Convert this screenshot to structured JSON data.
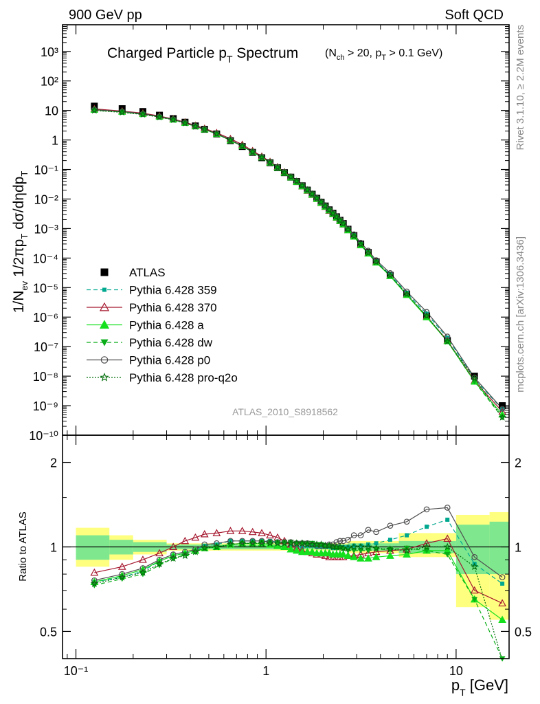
{
  "header": {
    "left": "900 GeV pp",
    "right": "Soft QCD"
  },
  "side_labels": {
    "right_top": "Rivet 3.1.10, ≥ 2.2M events",
    "right_bottom": "mcplots.cern.ch [arXiv:1306.3436]"
  },
  "chart_data": [
    {
      "type": "scatter",
      "title_main": "Charged Particle p",
      "title_main_sub": "T",
      "title_main_tail": " Spectrum",
      "title_cut_1": "(N",
      "title_cut_1_sub": "ch",
      "title_cut_2": " > 20, p",
      "title_cut_2_sub": "T",
      "title_cut_3": " > 0.1 GeV)",
      "ylabel": "1/N_ev 1/2πp_T dσ/dηdp_T",
      "xlabel": "",
      "xscale": "log",
      "yscale": "log",
      "xlim": [
        0.085,
        19
      ],
      "ylim": [
        1e-10,
        8000
      ],
      "grid": false,
      "legend_position": "lower-left",
      "watermark": "ATLAS_2010_S8918562",
      "ytick_labels": [
        "10⁻¹⁰",
        "10⁻⁹",
        "10⁻⁸",
        "10⁻⁷",
        "10⁻⁶",
        "10⁻⁵",
        "10⁻⁴",
        "10⁻³",
        "10⁻²",
        "10⁻¹",
        "1",
        "10",
        "10²",
        "10³"
      ],
      "x": [
        0.125,
        0.175,
        0.225,
        0.275,
        0.325,
        0.375,
        0.425,
        0.475,
        0.55,
        0.65,
        0.75,
        0.85,
        0.95,
        1.05,
        1.15,
        1.25,
        1.35,
        1.45,
        1.55,
        1.65,
        1.75,
        1.85,
        1.95,
        2.05,
        2.15,
        2.25,
        2.35,
        2.45,
        2.55,
        2.7,
        2.9,
        3.15,
        3.45,
        3.8,
        4.5,
        5.5,
        7.0,
        9.0,
        12.5,
        17.5
      ],
      "series": [
        {
          "name": "ATLAS",
          "color": "#000000",
          "marker": "square",
          "values": [
            14,
            11.5,
            9.2,
            6.9,
            5.3,
            4.0,
            3.0,
            2.3,
            1.6,
            0.95,
            0.6,
            0.38,
            0.25,
            0.17,
            0.115,
            0.078,
            0.055,
            0.039,
            0.028,
            0.02,
            0.0145,
            0.0106,
            0.0078,
            0.0058,
            0.0043,
            0.0033,
            0.0025,
            0.0019,
            0.00148,
            0.00095,
            0.00058,
            0.0003,
            0.000155,
            7.5e-05,
            2.6e-05,
            6e-06,
            1.1e-06,
            1.6e-07,
            1e-08,
            1e-09
          ]
        },
        {
          "name": "Pythia 6.428 359",
          "color": "#00a88f",
          "marker": "square-small",
          "dash": "6,4",
          "values": [
            10.5,
            8.9,
            7.5,
            6.1,
            4.9,
            3.8,
            2.9,
            2.3,
            1.6,
            0.99,
            0.63,
            0.4,
            0.265,
            0.178,
            0.12,
            0.081,
            0.056,
            0.039,
            0.028,
            0.0202,
            0.0147,
            0.0106,
            0.0078,
            0.0058,
            0.0043,
            0.00328,
            0.0025,
            0.00191,
            0.00148,
            0.00095,
            0.00059,
            0.000302,
            0.000158,
            7.7e-05,
            2.75e-05,
            6.6e-06,
            1.3e-06,
            2e-07,
            8e-09,
            7.5e-10
          ]
        },
        {
          "name": "Pythia 6.428 370",
          "color": "#a5172e",
          "marker": "triangle-open",
          "dash": "",
          "values": [
            11.3,
            9.5,
            8.1,
            6.5,
            5.1,
            4.0,
            3.1,
            2.45,
            1.75,
            1.1,
            0.7,
            0.43,
            0.28,
            0.185,
            0.123,
            0.082,
            0.055,
            0.038,
            0.0268,
            0.0191,
            0.0138,
            0.01,
            0.0073,
            0.0054,
            0.004,
            0.00305,
            0.00232,
            0.00178,
            0.00137,
            0.00088,
            0.00054,
            0.00028,
            0.000148,
            7.3e-05,
            2.5e-05,
            5.7e-06,
            1.05e-06,
            1.6e-07,
            7e-09,
            6.3e-10
          ]
        },
        {
          "name": "Pythia 6.428 a",
          "color": "#14e01e",
          "marker": "triangle",
          "dash": "",
          "values": [
            10.5,
            9.0,
            7.6,
            6.1,
            4.9,
            3.8,
            2.9,
            2.27,
            1.6,
            0.97,
            0.62,
            0.39,
            0.257,
            0.172,
            0.116,
            0.078,
            0.054,
            0.038,
            0.027,
            0.0194,
            0.014,
            0.0101,
            0.0074,
            0.0055,
            0.0041,
            0.0031,
            0.00235,
            0.0018,
            0.00138,
            0.00087,
            0.00053,
            0.00027,
            0.000142,
            7e-05,
            2.45e-05,
            5.6e-06,
            9.8e-07,
            1.52e-07,
            6.5e-09,
            5e-10
          ]
        },
        {
          "name": "Pythia 6.428 dw",
          "color": "#08ad17",
          "marker": "triangle-down",
          "dash": "6,4",
          "values": [
            10.2,
            8.8,
            7.4,
            6.0,
            4.85,
            3.75,
            2.9,
            2.3,
            1.6,
            0.97,
            0.62,
            0.39,
            0.26,
            0.176,
            0.119,
            0.081,
            0.057,
            0.04,
            0.0288,
            0.0206,
            0.0149,
            0.0107,
            0.0079,
            0.0058,
            0.0043,
            0.00327,
            0.00247,
            0.00188,
            0.00145,
            0.00092,
            0.00056,
            0.00029,
            0.00015,
            7.3e-05,
            2.5e-05,
            5.9e-06,
            1.07e-06,
            1.5e-07,
            6.5e-09,
            4e-10
          ]
        },
        {
          "name": "Pythia 6.428 p0",
          "color": "#4d4d4d",
          "marker": "circle-open",
          "dash": "",
          "values": [
            10.6,
            9.2,
            7.7,
            6.2,
            5.0,
            3.85,
            2.95,
            2.34,
            1.65,
            1.0,
            0.63,
            0.4,
            0.262,
            0.176,
            0.119,
            0.081,
            0.057,
            0.0401,
            0.0288,
            0.0206,
            0.0148,
            0.0107,
            0.0079,
            0.0059,
            0.0044,
            0.00336,
            0.0026,
            0.00199,
            0.00156,
            0.00101,
            0.00064,
            0.00033,
            0.000178,
            8.5e-05,
            3.1e-05,
            7.4e-06,
            1.5e-06,
            2.2e-07,
            9e-09,
            7.8e-10
          ]
        },
        {
          "name": "Pythia 6.428 pro-q2o",
          "color": "#006d0a",
          "marker": "star",
          "dash": "2,2",
          "values": [
            10.0,
            8.6,
            7.3,
            5.9,
            4.8,
            3.7,
            2.85,
            2.27,
            1.6,
            0.97,
            0.62,
            0.39,
            0.258,
            0.174,
            0.118,
            0.08,
            0.056,
            0.04,
            0.0285,
            0.0204,
            0.0148,
            0.0107,
            0.0079,
            0.0058,
            0.0043,
            0.00326,
            0.00246,
            0.00187,
            0.00144,
            0.00092,
            0.00055,
            0.00029,
            0.000149,
            7.3e-05,
            2.6e-05,
            6e-06,
            1.1e-06,
            1.5e-07,
            8.5e-09,
            4e-10
          ]
        }
      ]
    },
    {
      "type": "line",
      "title": "",
      "xlabel": "p_T [GeV]",
      "ylabel": "Ratio to ATLAS",
      "xscale": "log",
      "yscale": "log",
      "xlim": [
        0.085,
        19
      ],
      "ylim": [
        0.4,
        2.5
      ],
      "grid": false,
      "reference_line": 1,
      "xtick_labels": [
        "10⁻¹",
        "1",
        "10"
      ],
      "ytick_labels": [
        "0.5",
        "1",
        "2"
      ],
      "x": [
        0.125,
        0.175,
        0.225,
        0.275,
        0.325,
        0.375,
        0.425,
        0.475,
        0.55,
        0.65,
        0.75,
        0.85,
        0.95,
        1.05,
        1.15,
        1.25,
        1.35,
        1.45,
        1.55,
        1.65,
        1.75,
        1.85,
        1.95,
        2.05,
        2.15,
        2.25,
        2.35,
        2.45,
        2.55,
        2.7,
        2.9,
        3.15,
        3.45,
        3.8,
        4.5,
        5.5,
        7.0,
        9.0,
        12.5,
        17.5
      ],
      "series": [
        {
          "name": "Pythia 6.428 359",
          "color": "#00a88f",
          "marker": "square-small",
          "dash": "6,4",
          "values": [
            0.75,
            0.78,
            0.82,
            0.89,
            0.93,
            0.95,
            0.97,
            1.01,
            1.02,
            1.05,
            1.05,
            1.05,
            1.05,
            1.05,
            1.04,
            1.04,
            1.02,
            1.0,
            1.0,
            1.01,
            1.01,
            1.0,
            1.0,
            1.0,
            1.0,
            0.99,
            0.99,
            1.0,
            1.0,
            1.0,
            1.01,
            1.01,
            1.02,
            1.03,
            1.06,
            1.1,
            1.18,
            1.25,
            0.87,
            0.74
          ]
        },
        {
          "name": "Pythia 6.428 370",
          "color": "#a5172e",
          "marker": "triangle-open",
          "dash": "",
          "values": [
            0.81,
            0.85,
            0.9,
            0.95,
            1.0,
            1.05,
            1.08,
            1.11,
            1.12,
            1.14,
            1.14,
            1.13,
            1.12,
            1.1,
            1.08,
            1.05,
            1.02,
            0.99,
            0.97,
            0.96,
            0.95,
            0.94,
            0.94,
            0.93,
            0.92,
            0.92,
            0.92,
            0.92,
            0.92,
            0.93,
            0.93,
            0.94,
            0.95,
            0.96,
            0.97,
            0.98,
            1.03,
            1.07,
            0.7,
            0.63
          ]
        },
        {
          "name": "Pythia 6.428 a",
          "color": "#14e01e",
          "marker": "triangle",
          "dash": "",
          "values": [
            0.75,
            0.79,
            0.83,
            0.89,
            0.93,
            0.95,
            0.97,
            0.99,
            1.0,
            1.02,
            1.03,
            1.03,
            1.03,
            1.02,
            1.01,
            1.0,
            0.98,
            0.97,
            0.96,
            0.96,
            0.96,
            0.95,
            0.95,
            0.95,
            0.95,
            0.94,
            0.94,
            0.94,
            0.94,
            0.93,
            0.92,
            0.91,
            0.91,
            0.92,
            0.93,
            0.94,
            0.97,
            0.97,
            0.65,
            0.55
          ]
        },
        {
          "name": "Pythia 6.428 dw",
          "color": "#08ad17",
          "marker": "triangle-down",
          "dash": "6,4",
          "values": [
            0.73,
            0.77,
            0.8,
            0.86,
            0.91,
            0.94,
            0.96,
            0.99,
            1.0,
            1.02,
            1.03,
            1.03,
            1.04,
            1.04,
            1.04,
            1.04,
            1.04,
            1.03,
            1.03,
            1.03,
            1.03,
            1.02,
            1.02,
            1.01,
            1.01,
            1.0,
            0.99,
            0.99,
            0.98,
            0.97,
            0.97,
            0.97,
            0.97,
            0.98,
            0.98,
            0.99,
            0.97,
            0.94,
            0.65,
            0.4
          ]
        },
        {
          "name": "Pythia 6.428 p0",
          "color": "#4d4d4d",
          "marker": "circle-open",
          "dash": "",
          "values": [
            0.76,
            0.8,
            0.84,
            0.9,
            0.94,
            0.96,
            0.98,
            1.02,
            1.03,
            1.05,
            1.05,
            1.05,
            1.05,
            1.04,
            1.04,
            1.04,
            1.04,
            1.03,
            1.03,
            1.03,
            1.02,
            1.01,
            1.01,
            1.01,
            1.02,
            1.02,
            1.04,
            1.05,
            1.05,
            1.06,
            1.1,
            1.1,
            1.15,
            1.13,
            1.19,
            1.23,
            1.36,
            1.38,
            0.92,
            0.78
          ]
        },
        {
          "name": "Pythia 6.428 pro-q2o",
          "color": "#006d0a",
          "marker": "star",
          "dash": "2,2",
          "values": [
            0.74,
            0.78,
            0.81,
            0.87,
            0.91,
            0.93,
            0.96,
            0.99,
            1.0,
            1.02,
            1.03,
            1.03,
            1.03,
            1.03,
            1.03,
            1.03,
            1.03,
            1.03,
            1.03,
            1.02,
            1.02,
            1.02,
            1.02,
            1.01,
            1.01,
            1.0,
            1.0,
            1.0,
            0.99,
            0.99,
            1.0,
            1.0,
            1.0,
            0.99,
            0.98,
            0.97,
            1.0,
            1.0,
            0.85,
            0.38
          ]
        }
      ],
      "band_inner": [
        {
          "x": [
            0.1,
            0.15
          ],
          "lo": 0.9,
          "hi": 1.1
        },
        {
          "x": [
            0.15,
            0.2
          ],
          "lo": 0.94,
          "hi": 1.06
        },
        {
          "x": [
            0.2,
            0.3
          ],
          "lo": 0.96,
          "hi": 1.04
        },
        {
          "x": [
            0.3,
            2.7
          ],
          "lo": 0.98,
          "hi": 1.02
        },
        {
          "x": [
            2.7,
            5.0
          ],
          "lo": 0.97,
          "hi": 1.03
        },
        {
          "x": [
            5.0,
            10.0
          ],
          "lo": 0.95,
          "hi": 1.05
        },
        {
          "x": [
            10.0,
            15.0
          ],
          "lo": 0.8,
          "hi": 1.2
        },
        {
          "x": [
            15.0,
            20.0
          ],
          "lo": 0.8,
          "hi": 1.23
        }
      ],
      "band_outer": [
        {
          "x": [
            0.1,
            0.15
          ],
          "lo": 0.85,
          "hi": 1.17
        },
        {
          "x": [
            0.15,
            0.2
          ],
          "lo": 0.9,
          "hi": 1.1
        },
        {
          "x": [
            0.2,
            0.3
          ],
          "lo": 0.94,
          "hi": 1.06
        },
        {
          "x": [
            0.3,
            2.7
          ],
          "lo": 0.97,
          "hi": 1.03
        },
        {
          "x": [
            2.7,
            5.0
          ],
          "lo": 0.95,
          "hi": 1.05
        },
        {
          "x": [
            5.0,
            10.0
          ],
          "lo": 0.92,
          "hi": 1.12
        },
        {
          "x": [
            10.0,
            15.0
          ],
          "lo": 0.61,
          "hi": 1.3
        },
        {
          "x": [
            15.0,
            20.0
          ],
          "lo": 0.55,
          "hi": 1.33
        }
      ]
    }
  ]
}
